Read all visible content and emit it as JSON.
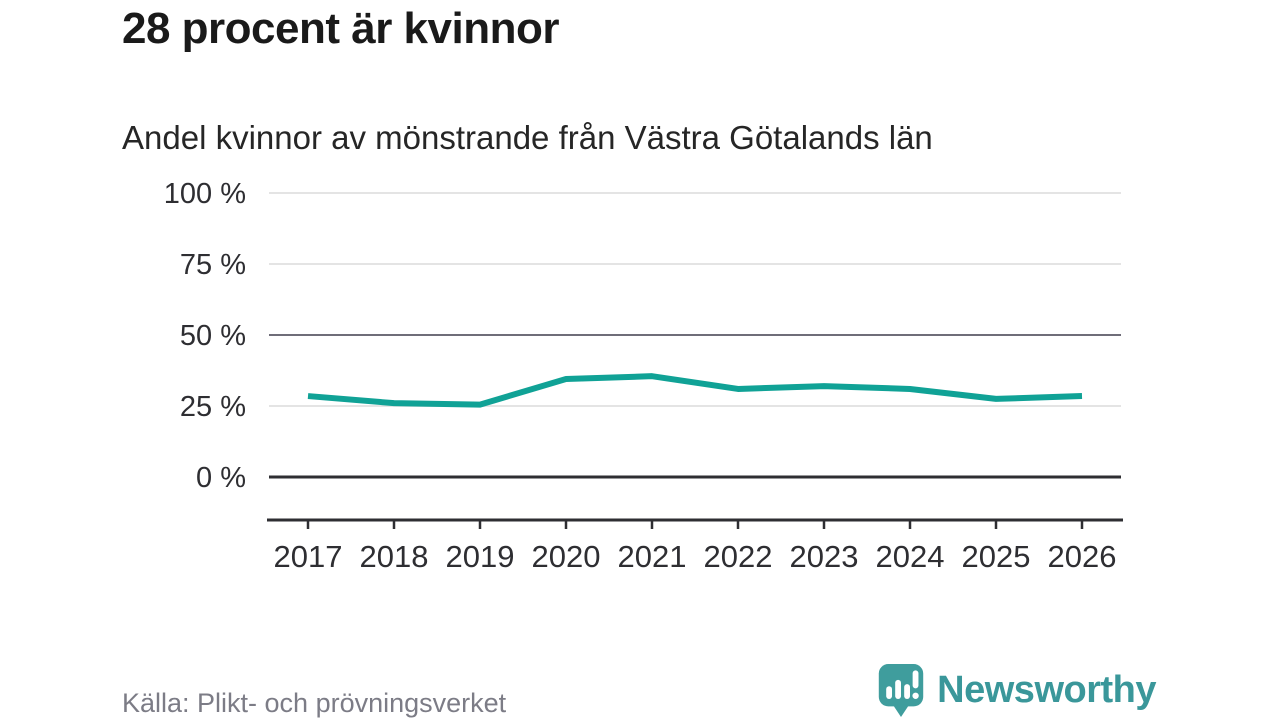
{
  "header": {
    "title": "28 procent är kvinnor",
    "subtitle": "Andel kvinnor av mönstrande från Västra Götalands län"
  },
  "chart_data": {
    "type": "line",
    "title": "28 procent är kvinnor",
    "subtitle": "Andel kvinnor av mönstrande från Västra Götalands län",
    "x": [
      2017,
      2018,
      2019,
      2020,
      2021,
      2022,
      2023,
      2024,
      2025,
      2026
    ],
    "series": [
      {
        "name": "Andel kvinnor av mönstrande",
        "values": [
          28.5,
          26,
          25.5,
          34.5,
          35.5,
          31,
          32,
          31,
          27.5,
          28.5
        ]
      }
    ],
    "xlabel": "",
    "ylabel": "",
    "ylim": [
      0,
      100
    ],
    "yticks": [
      0,
      25,
      50,
      75,
      100
    ],
    "ytick_labels": [
      "0 %",
      "25 %",
      "50 %",
      "75 %",
      "100 %"
    ],
    "grid": "horizontal",
    "emphasized_gridlines": [
      0,
      50
    ],
    "legend_position": "none",
    "line_color": "#10a296",
    "grid_color_light": "#e4e4e4",
    "grid_color_mid": "#6f6d79",
    "axis_color": "#2e2e32",
    "tick_label_color": "#2e2e32"
  },
  "footer": {
    "source": "Källa: Plikt- och prövningsverket",
    "brand": "Newsworthy",
    "brand_color": "#3a979a",
    "brand_icon": "bar-chart-speech-bubble-icon",
    "brand_icon_color": "#3f9d9d"
  }
}
